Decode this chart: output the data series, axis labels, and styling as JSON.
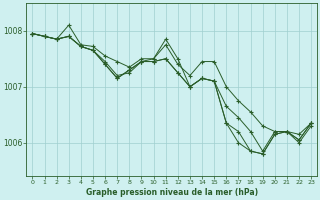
{
  "xlabel": "Graphe pression niveau de la mer (hPa)",
  "bg_color": "#cff0f0",
  "grid_color": "#a0d0d0",
  "line_color": "#2a5e2a",
  "marker_color": "#2a5e2a",
  "ylim": [
    1005.4,
    1008.5
  ],
  "xlim": [
    -0.5,
    23.5
  ],
  "yticks": [
    1006,
    1007,
    1008
  ],
  "xticks": [
    0,
    1,
    2,
    3,
    4,
    5,
    6,
    7,
    8,
    9,
    10,
    11,
    12,
    13,
    14,
    15,
    16,
    17,
    18,
    19,
    20,
    21,
    22,
    23
  ],
  "series": [
    [
      1007.95,
      1007.9,
      1007.85,
      1008.1,
      1007.75,
      1007.72,
      1007.55,
      1007.45,
      1007.35,
      1007.5,
      1007.5,
      1007.75,
      1007.4,
      1007.2,
      1007.45,
      1007.45,
      1007.0,
      1006.75,
      1006.55,
      1006.3,
      1006.2,
      1006.2,
      1006.15,
      1006.35
    ],
    [
      1007.95,
      1007.9,
      1007.85,
      1007.9,
      1007.72,
      1007.65,
      1007.45,
      1007.2,
      1007.25,
      1007.45,
      1007.5,
      1007.85,
      1007.5,
      1007.0,
      1007.15,
      1007.1,
      1006.65,
      1006.45,
      1006.2,
      1005.85,
      1006.2,
      1006.2,
      1006.05,
      1006.35
    ],
    [
      1007.95,
      1007.9,
      1007.85,
      1007.9,
      1007.72,
      1007.65,
      1007.4,
      1007.15,
      1007.3,
      1007.45,
      1007.45,
      1007.5,
      1007.25,
      1007.0,
      1007.15,
      1007.1,
      1006.35,
      1006.2,
      1005.85,
      1005.8,
      1006.15,
      1006.2,
      1006.05,
      1006.35
    ],
    [
      1007.95,
      1007.9,
      1007.85,
      1007.9,
      1007.72,
      1007.65,
      1007.4,
      1007.15,
      1007.3,
      1007.45,
      1007.45,
      1007.5,
      1007.25,
      1007.0,
      1007.15,
      1007.1,
      1006.35,
      1006.0,
      1005.85,
      1005.8,
      1006.15,
      1006.2,
      1006.0,
      1006.3
    ]
  ]
}
